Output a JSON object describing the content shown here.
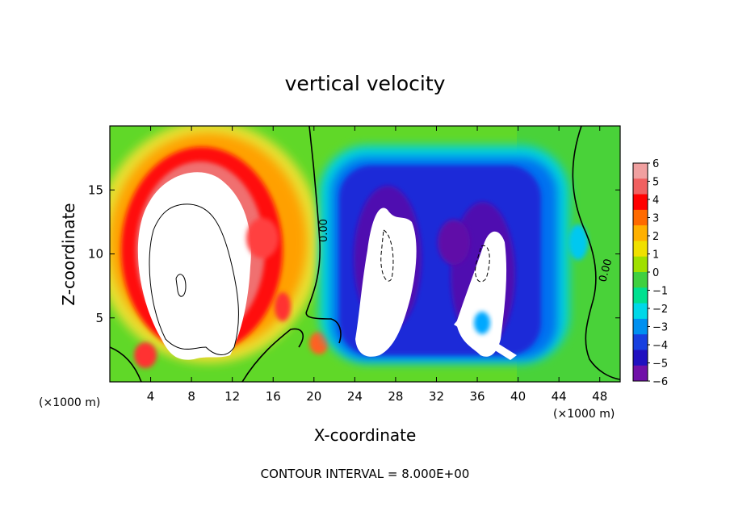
{
  "chart_data": {
    "type": "heatmap",
    "title": "vertical velocity",
    "xlabel": "X-coordinate",
    "ylabel": "Z-coordinate",
    "x_unit_left": "(×1000 m)",
    "x_unit_right": "(×1000 m)",
    "footer": "CONTOUR INTERVAL = 8.000E+00",
    "xlim": [
      0,
      50
    ],
    "ylim": [
      0,
      20
    ],
    "xticks": [
      "4",
      "8",
      "12",
      "16",
      "20",
      "24",
      "28",
      "32",
      "36",
      "40",
      "44",
      "48"
    ],
    "yticks": [
      "5",
      "10",
      "15"
    ],
    "contour_labels": [
      "0.00",
      "0.00"
    ],
    "colorbar": {
      "range": [
        -6,
        6
      ],
      "tick_labels": [
        "6",
        "5",
        "4",
        "3",
        "2",
        "1",
        "0",
        "−1",
        "−2",
        "−3",
        "−4",
        "−5",
        "−6"
      ],
      "colors": [
        "#f0a0a0",
        "#f06060",
        "#ff0000",
        "#ff6a00",
        "#ffb000",
        "#f0e000",
        "#a0e000",
        "#40d040",
        "#00e090",
        "#00d8e8",
        "#0090f0",
        "#1840e0",
        "#2010c0",
        "#7010a8"
      ]
    },
    "features": [
      {
        "name": "updraft core",
        "sign": "positive",
        "x": [
          2,
          15
        ],
        "z": [
          1,
          17
        ],
        "max_exceeds": 6
      },
      {
        "name": "downdraft west",
        "sign": "negative",
        "x": [
          23,
          31
        ],
        "z": [
          1,
          17
        ],
        "min_below": -6
      },
      {
        "name": "downdraft east",
        "sign": "negative",
        "x": [
          34,
          40
        ],
        "z": [
          1,
          17
        ],
        "min_below": -6
      }
    ]
  }
}
